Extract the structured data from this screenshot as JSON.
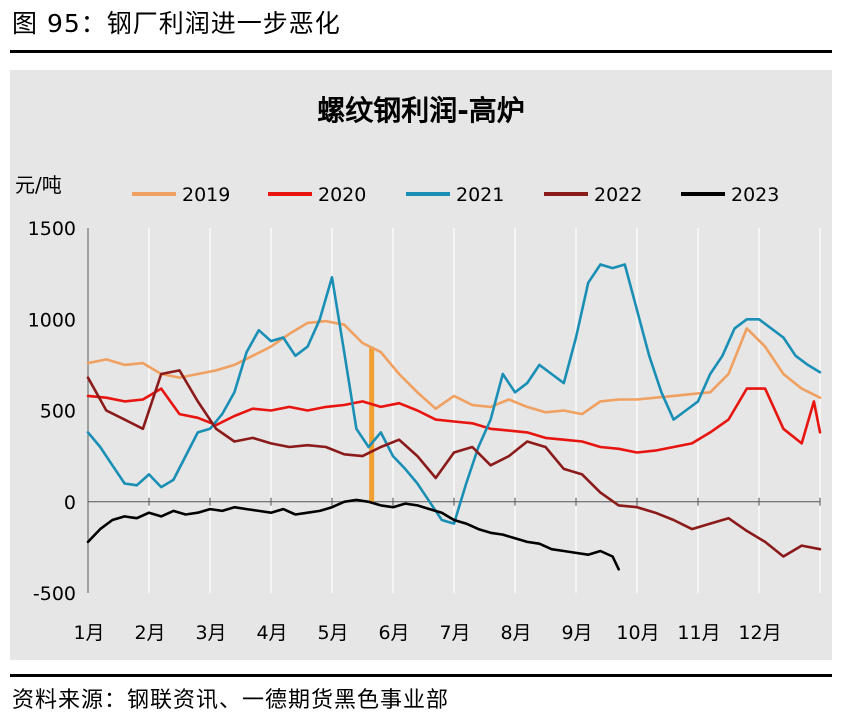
{
  "figure": {
    "caption": "图 95：钢厂利润进一步恶化",
    "source": "资料来源：钢联资讯、一德期货黑色事业部"
  },
  "chart_data": {
    "type": "line",
    "title": "螺纹钢利润-高炉",
    "ylabel": "元/吨",
    "xlabel": "",
    "ylim": [
      -500,
      1500
    ],
    "yticks": [
      -500,
      0,
      500,
      1000,
      1500
    ],
    "xlim": [
      1,
      13
    ],
    "categories": [
      "1月",
      "2月",
      "3月",
      "4月",
      "5月",
      "6月",
      "7月",
      "8月",
      "9月",
      "10月",
      "11月",
      "12月"
    ],
    "legend_position": "top",
    "grid": "vertical",
    "series": [
      {
        "name": "2019",
        "color": "#f0a060",
        "x": [
          1,
          1.3,
          1.6,
          1.9,
          2.2,
          2.5,
          2.8,
          3.1,
          3.4,
          3.7,
          4.0,
          4.3,
          4.6,
          4.9,
          5.2,
          5.5,
          5.8,
          6.1,
          6.4,
          6.7,
          7.0,
          7.3,
          7.6,
          7.9,
          8.2,
          8.5,
          8.8,
          9.1,
          9.4,
          9.7,
          10.0,
          10.3,
          10.6,
          10.9,
          11.2,
          11.5,
          11.8,
          12.1,
          12.4,
          12.7,
          13.0
        ],
        "values": [
          760,
          780,
          750,
          760,
          700,
          680,
          700,
          720,
          750,
          800,
          850,
          920,
          980,
          990,
          970,
          870,
          820,
          700,
          600,
          510,
          580,
          530,
          520,
          560,
          520,
          490,
          500,
          480,
          550,
          560,
          560,
          570,
          580,
          590,
          600,
          700,
          950,
          850,
          700,
          620,
          570
        ]
      },
      {
        "name": "2020",
        "color": "#e8140f",
        "x": [
          1,
          1.3,
          1.6,
          1.9,
          2.2,
          2.5,
          2.8,
          3.1,
          3.4,
          3.7,
          4.0,
          4.3,
          4.6,
          4.9,
          5.2,
          5.5,
          5.8,
          6.1,
          6.4,
          6.7,
          7.0,
          7.3,
          7.6,
          7.9,
          8.2,
          8.5,
          8.8,
          9.1,
          9.4,
          9.7,
          10.0,
          10.3,
          10.6,
          10.9,
          11.2,
          11.5,
          11.8,
          12.1,
          12.4,
          12.7,
          12.9,
          13.0
        ],
        "values": [
          580,
          570,
          550,
          560,
          620,
          480,
          460,
          420,
          470,
          510,
          500,
          520,
          500,
          520,
          530,
          550,
          520,
          540,
          500,
          450,
          440,
          430,
          400,
          390,
          380,
          350,
          340,
          330,
          300,
          290,
          270,
          280,
          300,
          320,
          380,
          450,
          620,
          620,
          400,
          320,
          550,
          380
        ]
      },
      {
        "name": "2021",
        "color": "#1a8fb5",
        "x": [
          1,
          1.2,
          1.4,
          1.6,
          1.8,
          2.0,
          2.2,
          2.4,
          2.6,
          2.8,
          3.0,
          3.2,
          3.4,
          3.6,
          3.8,
          4.0,
          4.2,
          4.4,
          4.6,
          4.8,
          5.0,
          5.2,
          5.4,
          5.6,
          5.8,
          6.0,
          6.2,
          6.4,
          6.6,
          6.8,
          7.0,
          7.2,
          7.4,
          7.6,
          7.8,
          8.0,
          8.2,
          8.4,
          8.6,
          8.8,
          9.0,
          9.2,
          9.4,
          9.6,
          9.8,
          10.0,
          10.2,
          10.4,
          10.6,
          10.8,
          11.0,
          11.2,
          11.4,
          11.6,
          11.8,
          12.0,
          12.2,
          12.4,
          12.6,
          12.8,
          13.0
        ],
        "values": [
          380,
          300,
          200,
          100,
          90,
          150,
          80,
          120,
          250,
          380,
          400,
          480,
          600,
          820,
          940,
          880,
          900,
          800,
          850,
          1000,
          1230,
          820,
          400,
          300,
          380,
          250,
          180,
          100,
          0,
          -100,
          -120,
          100,
          300,
          450,
          700,
          600,
          650,
          750,
          700,
          650,
          900,
          1200,
          1300,
          1280,
          1300,
          1050,
          800,
          600,
          450,
          500,
          550,
          700,
          800,
          950,
          1000,
          1000,
          950,
          900,
          800,
          750,
          710
        ]
      },
      {
        "name": "2022",
        "color": "#8b1a1a",
        "x": [
          1,
          1.3,
          1.6,
          1.9,
          2.2,
          2.5,
          2.8,
          3.1,
          3.4,
          3.7,
          4.0,
          4.3,
          4.6,
          4.9,
          5.2,
          5.5,
          5.8,
          6.1,
          6.4,
          6.7,
          7.0,
          7.3,
          7.6,
          7.9,
          8.2,
          8.5,
          8.8,
          9.1,
          9.4,
          9.7,
          10.0,
          10.3,
          10.6,
          10.9,
          11.2,
          11.5,
          11.8,
          12.1,
          12.4,
          12.7,
          13.0
        ],
        "values": [
          680,
          500,
          450,
          400,
          700,
          720,
          550,
          400,
          330,
          350,
          320,
          300,
          310,
          300,
          260,
          250,
          300,
          340,
          250,
          130,
          270,
          300,
          200,
          250,
          330,
          300,
          180,
          150,
          50,
          -20,
          -30,
          -60,
          -100,
          -150,
          -120,
          -90,
          -160,
          -220,
          -300,
          -240,
          -260
        ]
      },
      {
        "name": "2023",
        "color": "#000000",
        "x": [
          1,
          1.2,
          1.4,
          1.6,
          1.8,
          2.0,
          2.2,
          2.4,
          2.6,
          2.8,
          3.0,
          3.2,
          3.4,
          3.6,
          3.8,
          4.0,
          4.2,
          4.4,
          4.6,
          4.8,
          5.0,
          5.2,
          5.4,
          5.6,
          5.8,
          6.0,
          6.2,
          6.4,
          6.6,
          6.8,
          7.0,
          7.2,
          7.4,
          7.6,
          7.8,
          8.0,
          8.2,
          8.4,
          8.6,
          8.8,
          9.0,
          9.2,
          9.4,
          9.6,
          9.7
        ],
        "values": [
          -220,
          -150,
          -100,
          -80,
          -90,
          -60,
          -80,
          -50,
          -70,
          -60,
          -40,
          -50,
          -30,
          -40,
          -50,
          -60,
          -40,
          -70,
          -60,
          -50,
          -30,
          0,
          10,
          0,
          -20,
          -30,
          -10,
          -20,
          -40,
          -60,
          -100,
          -120,
          -150,
          -170,
          -180,
          -200,
          -220,
          -230,
          -260,
          -270,
          -280,
          -290,
          -270,
          -300,
          -370
        ]
      }
    ],
    "annotation": {
      "type": "vertical-bar",
      "x": 5.65,
      "y_from": -10,
      "y_to": 850,
      "color": "#f0a030"
    }
  }
}
